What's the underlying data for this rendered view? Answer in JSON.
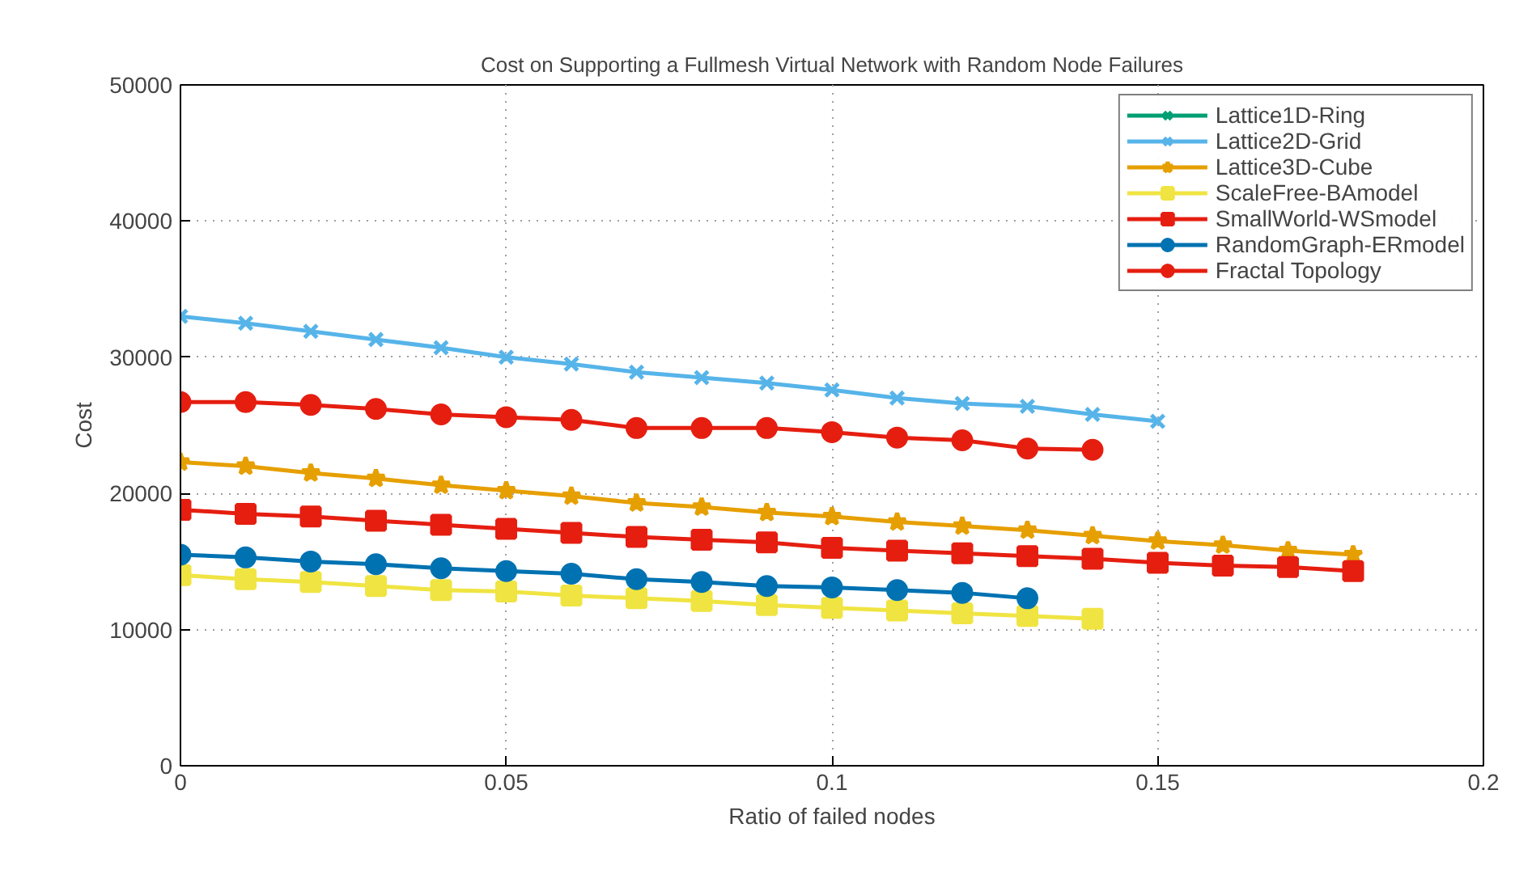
{
  "chart_data": {
    "type": "line",
    "title": "Cost on Supporting a Fullmesh Virtual Network with Random Node Failures",
    "xlabel": "Ratio of failed nodes",
    "ylabel": "Cost",
    "xlim": [
      0,
      0.2
    ],
    "xticks": [
      0,
      0.05,
      0.1,
      0.15,
      0.2
    ],
    "ylim": [
      0,
      50000
    ],
    "yticks": [
      0,
      10000,
      20000,
      30000,
      40000,
      50000
    ],
    "grid": true,
    "legend": "top right",
    "line_style": "solid",
    "series": [
      {
        "name": "Lattice1D-Ring",
        "color": "#009e73",
        "marker": "cross"
      },
      {
        "name": "Lattice2D-Grid",
        "color": "#56b4e9",
        "marker": "cross",
        "x": [
          0,
          0.01,
          0.02,
          0.03,
          0.04,
          0.05,
          0.06,
          0.07,
          0.08,
          0.09,
          0.1,
          0.11,
          0.12,
          0.13,
          0.14,
          0.15
        ],
        "values": [
          33000,
          32500,
          31900,
          31300,
          30700,
          30000,
          29500,
          28900,
          28500,
          28100,
          27600,
          27000,
          26600,
          26400,
          25800,
          25300
        ]
      },
      {
        "name": "Lattice3D-Cube",
        "color": "#e69f00",
        "marker": "star",
        "x": [
          0,
          0.01,
          0.02,
          0.03,
          0.04,
          0.05,
          0.06,
          0.07,
          0.08,
          0.09,
          0.1,
          0.11,
          0.12,
          0.13,
          0.14,
          0.15,
          0.16,
          0.17,
          0.18
        ],
        "values": [
          22300,
          22000,
          21500,
          21100,
          20600,
          20200,
          19800,
          19300,
          19000,
          18600,
          18300,
          17900,
          17600,
          17300,
          16900,
          16500,
          16200,
          15800,
          15500
        ]
      },
      {
        "name": "ScaleFree-BAmodel",
        "color": "#f0e442",
        "marker": "square",
        "x": [
          0,
          0.01,
          0.02,
          0.03,
          0.04,
          0.05,
          0.06,
          0.07,
          0.08,
          0.09,
          0.1,
          0.11,
          0.12,
          0.13,
          0.14
        ],
        "values": [
          14000,
          13700,
          13500,
          13200,
          12900,
          12800,
          12500,
          12300,
          12100,
          11800,
          11600,
          11400,
          11200,
          11000,
          10800
        ]
      },
      {
        "name": "SmallWorld-WSmodel",
        "color": "#e51e10",
        "marker": "square",
        "x": [
          0,
          0.01,
          0.02,
          0.03,
          0.04,
          0.05,
          0.06,
          0.07,
          0.08,
          0.09,
          0.1,
          0.11,
          0.12,
          0.13,
          0.14,
          0.15,
          0.16,
          0.17,
          0.18
        ],
        "values": [
          18800,
          18500,
          18300,
          18000,
          17700,
          17400,
          17100,
          16800,
          16600,
          16400,
          16000,
          15800,
          15600,
          15400,
          15200,
          14900,
          14700,
          14600,
          14300
        ]
      },
      {
        "name": "RandomGraph-ERmodel",
        "color": "#0072b2",
        "marker": "circle",
        "x": [
          0,
          0.01,
          0.02,
          0.03,
          0.04,
          0.05,
          0.06,
          0.07,
          0.08,
          0.09,
          0.1,
          0.11,
          0.12,
          0.13
        ],
        "values": [
          15500,
          15300,
          15000,
          14800,
          14500,
          14300,
          14100,
          13700,
          13500,
          13200,
          13100,
          12900,
          12700,
          12300
        ]
      },
      {
        "name": "Fractal Topology",
        "color": "#e51e10",
        "marker": "circle",
        "x": [
          0,
          0.01,
          0.02,
          0.03,
          0.04,
          0.05,
          0.06,
          0.07,
          0.08,
          0.09,
          0.1,
          0.11,
          0.12,
          0.13,
          0.14
        ],
        "values": [
          26700,
          26700,
          26500,
          26200,
          25800,
          25600,
          25400,
          24800,
          24800,
          24800,
          24500,
          24100,
          23900,
          23300,
          23200
        ]
      }
    ]
  }
}
